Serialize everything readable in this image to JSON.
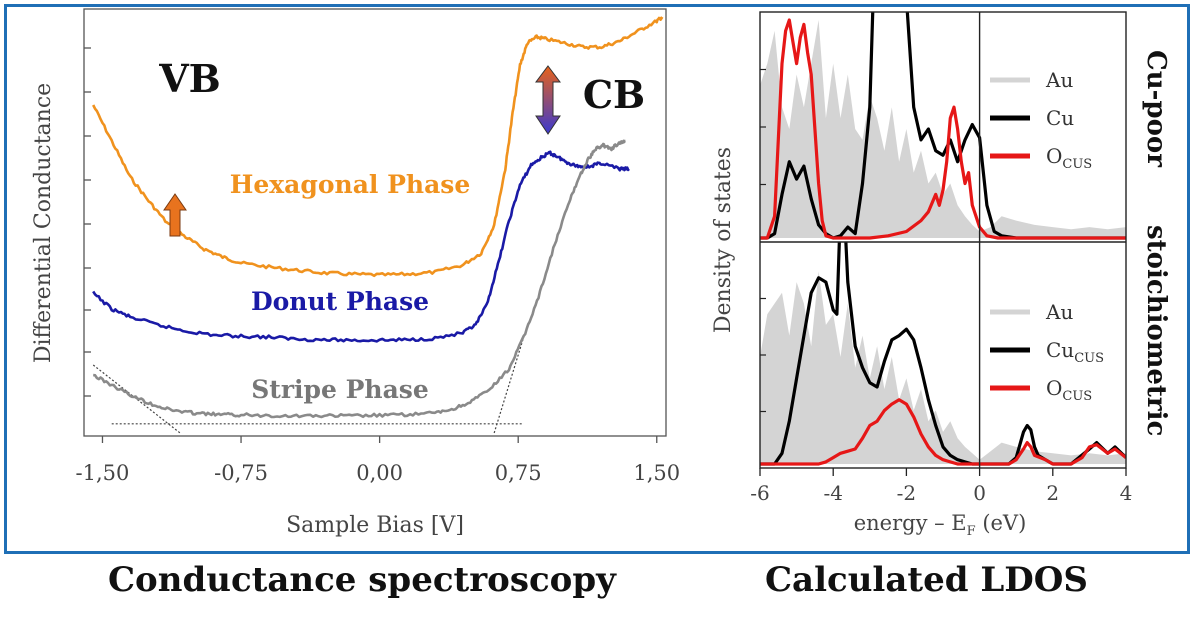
{
  "chart_data": [
    {
      "type": "line",
      "title": "",
      "xlabel": "Sample Bias [V]",
      "ylabel": "Differential Conductance",
      "xlim": [
        -1.6,
        1.55
      ],
      "y_ticks_labeled": false,
      "x_ticks": [
        -1.5,
        -0.75,
        0.0,
        0.75,
        1.5
      ],
      "x_tick_labels": [
        "-1,50",
        "-0,75",
        "0,00",
        "0,75",
        "1,50"
      ],
      "annotations": [
        "VB",
        "CB"
      ],
      "colors": {
        "hexagonal": "#f0921e",
        "donut": "#1a1aa6",
        "stripe": "#8a8a8a"
      },
      "series": [
        {
          "name": "Hexagonal Phase",
          "color": "#f0921e",
          "x": [
            -1.55,
            -1.45,
            -1.35,
            -1.25,
            -1.15,
            -1.05,
            -0.95,
            -0.85,
            -0.75,
            -0.6,
            -0.45,
            -0.3,
            -0.15,
            0.0,
            0.15,
            0.3,
            0.45,
            0.55,
            0.62,
            0.68,
            0.72,
            0.76,
            0.8,
            0.85,
            0.9,
            1.0,
            1.1,
            1.2,
            1.3,
            1.4,
            1.5,
            1.53
          ],
          "y": [
            0.8,
            0.71,
            0.62,
            0.56,
            0.505,
            0.47,
            0.44,
            0.42,
            0.405,
            0.395,
            0.387,
            0.38,
            0.377,
            0.375,
            0.377,
            0.382,
            0.4,
            0.43,
            0.5,
            0.64,
            0.78,
            0.9,
            0.955,
            0.97,
            0.965,
            0.955,
            0.945,
            0.945,
            0.96,
            0.985,
            1.01,
            1.02
          ]
        },
        {
          "name": "Donut Phase",
          "color": "#1a1aa6",
          "x": [
            -1.55,
            -1.45,
            -1.35,
            -1.2,
            -1.05,
            -0.9,
            -0.75,
            -0.6,
            -0.45,
            -0.3,
            -0.15,
            0.0,
            0.15,
            0.3,
            0.45,
            0.52,
            0.58,
            0.64,
            0.7,
            0.76,
            0.82,
            0.88,
            0.92,
            0.96,
            1.0,
            1.05,
            1.1,
            1.15,
            1.2,
            1.3,
            1.35
          ],
          "y": [
            0.33,
            0.29,
            0.27,
            0.25,
            0.235,
            0.225,
            0.222,
            0.22,
            0.215,
            0.213,
            0.212,
            0.212,
            0.213,
            0.217,
            0.23,
            0.25,
            0.3,
            0.4,
            0.51,
            0.6,
            0.65,
            0.67,
            0.68,
            0.672,
            0.66,
            0.65,
            0.645,
            0.648,
            0.655,
            0.64,
            0.64
          ]
        },
        {
          "name": "Stripe Phase",
          "color": "#8a8a8a",
          "x": [
            -1.55,
            -1.45,
            -1.35,
            -1.25,
            -1.15,
            -1.05,
            -0.95,
            -0.85,
            -0.75,
            -0.6,
            -0.45,
            -0.3,
            -0.15,
            0.0,
            0.15,
            0.3,
            0.4,
            0.5,
            0.6,
            0.7,
            0.78,
            0.86,
            0.94,
            1.02,
            1.08,
            1.13,
            1.17,
            1.21,
            1.25,
            1.3,
            1.33
          ],
          "y": [
            0.125,
            0.1,
            0.075,
            0.055,
            0.04,
            0.032,
            0.028,
            0.026,
            0.025,
            0.024,
            0.023,
            0.023,
            0.023,
            0.024,
            0.026,
            0.03,
            0.04,
            0.06,
            0.09,
            0.14,
            0.22,
            0.32,
            0.44,
            0.55,
            0.62,
            0.665,
            0.69,
            0.7,
            0.69,
            0.705,
            0.71
          ]
        }
      ],
      "guides": [
        {
          "x": [
            -1.55,
            -1.08
          ],
          "y": [
            0.15,
            -0.02
          ]
        },
        {
          "x": [
            0.62,
            0.78
          ],
          "y": [
            -0.02,
            0.22
          ]
        },
        {
          "x": [
            -1.45,
            0.78
          ],
          "y": [
            0.003,
            0.003
          ]
        }
      ]
    },
    {
      "type": "line",
      "title": "",
      "xlabel": "energy – E",
      "xlabel_sub": "F",
      "xlabel_tail": " (eV)",
      "ylabel": "Density of states",
      "xlim": [
        -6,
        4
      ],
      "x_ticks": [
        -6,
        -4,
        -2,
        0,
        2,
        4
      ],
      "x_tick_labels": [
        "-6",
        "-4",
        "-2",
        "0",
        "2",
        "4"
      ],
      "vertical_line_at": 0,
      "colors": {
        "au": "#d4d4d4",
        "cu": "#000000",
        "o": "#e61717"
      },
      "panels": [
        {
          "side_label": "Cu-poor",
          "legend": [
            {
              "label": "Au",
              "sub": "",
              "color": "#d4d4d4"
            },
            {
              "label": "Cu",
              "sub": "",
              "color": "#000000"
            },
            {
              "label": "O",
              "sub": "CUS",
              "color": "#e61717"
            }
          ],
          "series": [
            {
              "name": "Au",
              "kind": "area",
              "color": "#d4d4d4",
              "x": [
                -6,
                -5.8,
                -5.6,
                -5.4,
                -5.2,
                -5.0,
                -4.8,
                -4.6,
                -4.4,
                -4.2,
                -4.0,
                -3.8,
                -3.6,
                -3.4,
                -3.2,
                -3.0,
                -2.8,
                -2.6,
                -2.4,
                -2.2,
                -2.0,
                -1.8,
                -1.6,
                -1.4,
                -1.2,
                -1.0,
                -0.8,
                -0.6,
                -0.4,
                -0.2,
                0.0,
                0.3,
                0.6,
                1.0,
                1.5,
                2.0,
                2.5,
                3.0,
                3.5,
                4.0
              ],
              "y": [
                0.7,
                0.8,
                0.95,
                0.6,
                0.5,
                0.75,
                0.6,
                0.8,
                1.0,
                0.55,
                0.8,
                0.55,
                0.75,
                0.5,
                0.45,
                0.65,
                0.55,
                0.4,
                0.6,
                0.35,
                0.5,
                0.3,
                0.4,
                0.25,
                0.3,
                0.2,
                0.25,
                0.15,
                0.1,
                0.06,
                0.03,
                0.05,
                0.1,
                0.08,
                0.06,
                0.05,
                0.04,
                0.05,
                0.04,
                0.05
              ]
            },
            {
              "name": "Cu",
              "kind": "line",
              "color": "#000000",
              "x": [
                -6,
                -5.8,
                -5.6,
                -5.4,
                -5.2,
                -5.0,
                -4.8,
                -4.6,
                -4.4,
                -4.2,
                -4.0,
                -3.8,
                -3.6,
                -3.4,
                -3.2,
                -3.0,
                -2.9,
                -2.8,
                -2.6,
                -2.4,
                -2.2,
                -2.0,
                -1.8,
                -1.6,
                -1.4,
                -1.2,
                -1.0,
                -0.8,
                -0.6,
                -0.4,
                -0.2,
                0.0,
                0.2,
                0.4,
                0.6,
                1.0,
                2.0,
                3.0,
                4.0
              ],
              "y": [
                0.0,
                0.0,
                0.02,
                0.2,
                0.35,
                0.27,
                0.33,
                0.18,
                0.06,
                0.02,
                0.0,
                0.01,
                0.05,
                0.02,
                0.25,
                0.6,
                1.15,
                1.15,
                1.2,
                1.15,
                1.15,
                1.1,
                0.6,
                0.45,
                0.5,
                0.4,
                0.38,
                0.45,
                0.35,
                0.45,
                0.52,
                0.46,
                0.15,
                0.03,
                0.01,
                0.0,
                0.0,
                0.0,
                0.0
              ]
            },
            {
              "name": "O (CUS)",
              "kind": "line",
              "color": "#e61717",
              "x": [
                -6,
                -5.8,
                -5.6,
                -5.4,
                -5.3,
                -5.2,
                -5.1,
                -5.0,
                -4.9,
                -4.8,
                -4.7,
                -4.6,
                -4.5,
                -4.4,
                -4.3,
                -4.2,
                -4.0,
                -3.0,
                -2.5,
                -2.0,
                -1.6,
                -1.4,
                -1.2,
                -1.1,
                -1.0,
                -0.9,
                -0.8,
                -0.7,
                -0.6,
                -0.5,
                -0.4,
                -0.3,
                -0.2,
                0.0,
                0.2,
                0.5,
                1.0,
                2.0,
                3.0,
                4.0
              ],
              "y": [
                0.0,
                0.0,
                0.1,
                0.8,
                0.95,
                1.0,
                0.9,
                0.8,
                0.92,
                0.98,
                0.85,
                0.75,
                0.5,
                0.25,
                0.08,
                0.01,
                0.0,
                0.0,
                0.01,
                0.03,
                0.08,
                0.12,
                0.2,
                0.15,
                0.22,
                0.35,
                0.55,
                0.6,
                0.5,
                0.35,
                0.25,
                0.3,
                0.15,
                0.05,
                0.01,
                0.0,
                0.0,
                0.0,
                0.0,
                0.0
              ]
            }
          ]
        },
        {
          "side_label": "stoichiometric",
          "legend": [
            {
              "label": "Au",
              "sub": "",
              "color": "#d4d4d4"
            },
            {
              "label": "Cu",
              "sub": "CUS",
              "color": "#000000"
            },
            {
              "label": "O",
              "sub": "CUS",
              "color": "#e61717"
            }
          ],
          "series": [
            {
              "name": "Au",
              "kind": "area",
              "color": "#d4d4d4",
              "x": [
                -6,
                -5.8,
                -5.6,
                -5.4,
                -5.2,
                -5.0,
                -4.8,
                -4.6,
                -4.4,
                -4.2,
                -4.0,
                -3.8,
                -3.6,
                -3.4,
                -3.2,
                -3.0,
                -2.8,
                -2.6,
                -2.4,
                -2.2,
                -2.0,
                -1.8,
                -1.6,
                -1.4,
                -1.2,
                -1.0,
                -0.8,
                -0.6,
                -0.4,
                -0.2,
                0.0,
                0.3,
                0.6,
                1.0,
                1.5,
                2.0,
                2.5,
                3.0,
                3.5,
                4.0
              ],
              "y": [
                0.5,
                0.7,
                0.75,
                0.8,
                0.6,
                0.85,
                0.75,
                0.55,
                0.9,
                0.65,
                0.7,
                0.5,
                0.75,
                0.45,
                0.6,
                0.4,
                0.55,
                0.35,
                0.5,
                0.3,
                0.4,
                0.25,
                0.35,
                0.2,
                0.25,
                0.15,
                0.2,
                0.12,
                0.08,
                0.05,
                0.02,
                0.06,
                0.1,
                0.08,
                0.06,
                0.05,
                0.04,
                0.05,
                0.04,
                0.05
              ]
            },
            {
              "name": "Cu (CUS)",
              "kind": "line",
              "color": "#000000",
              "x": [
                -6,
                -5.8,
                -5.6,
                -5.4,
                -5.2,
                -5.0,
                -4.8,
                -4.6,
                -4.4,
                -4.2,
                -4.0,
                -3.9,
                -3.8,
                -3.7,
                -3.6,
                -3.5,
                -3.4,
                -3.2,
                -3.0,
                -2.8,
                -2.6,
                -2.4,
                -2.2,
                -2.0,
                -1.8,
                -1.6,
                -1.4,
                -1.2,
                -1.0,
                -0.8,
                -0.6,
                -0.4,
                -0.2,
                0.0,
                0.4,
                0.8,
                1.0,
                1.2,
                1.3,
                1.4,
                1.5,
                1.6,
                1.8,
                2.0,
                2.5,
                3.0,
                3.2,
                3.5,
                3.7,
                4.0
              ],
              "y": [
                0.0,
                0.0,
                0.0,
                0.05,
                0.2,
                0.4,
                0.6,
                0.8,
                0.87,
                0.85,
                0.72,
                0.7,
                1.2,
                1.2,
                0.85,
                0.7,
                0.55,
                0.45,
                0.38,
                0.36,
                0.48,
                0.58,
                0.6,
                0.63,
                0.58,
                0.45,
                0.3,
                0.18,
                0.08,
                0.04,
                0.02,
                0.01,
                0.0,
                0.0,
                0.0,
                0.0,
                0.03,
                0.15,
                0.18,
                0.16,
                0.08,
                0.04,
                0.02,
                0.0,
                0.0,
                0.07,
                0.1,
                0.05,
                0.08,
                0.03
              ]
            },
            {
              "name": "O (CUS)",
              "kind": "line",
              "color": "#e61717",
              "x": [
                -6,
                -5.8,
                -5.6,
                -5.4,
                -5.2,
                -5.0,
                -4.8,
                -4.6,
                -4.4,
                -4.2,
                -4.0,
                -3.8,
                -3.6,
                -3.4,
                -3.2,
                -3.0,
                -2.8,
                -2.6,
                -2.4,
                -2.2,
                -2.0,
                -1.8,
                -1.6,
                -1.4,
                -1.2,
                -1.0,
                -0.8,
                -0.6,
                0.0,
                0.8,
                1.0,
                1.2,
                1.3,
                1.4,
                1.5,
                1.8,
                2.0,
                2.5,
                2.8,
                3.0,
                3.2,
                3.5,
                3.7,
                4.0
              ],
              "y": [
                0.0,
                0.0,
                0.0,
                0.0,
                0.0,
                0.0,
                0.0,
                0.0,
                0.0,
                0.01,
                0.03,
                0.05,
                0.06,
                0.07,
                0.12,
                0.18,
                0.2,
                0.25,
                0.28,
                0.3,
                0.28,
                0.22,
                0.14,
                0.08,
                0.04,
                0.02,
                0.01,
                0.0,
                0.0,
                0.0,
                0.02,
                0.07,
                0.1,
                0.08,
                0.04,
                0.02,
                0.0,
                0.0,
                0.03,
                0.08,
                0.09,
                0.05,
                0.07,
                0.03
              ]
            }
          ]
        }
      ]
    }
  ],
  "captions": {
    "left": "Conductance spectroscopy",
    "right": "Calculated LDOS"
  }
}
